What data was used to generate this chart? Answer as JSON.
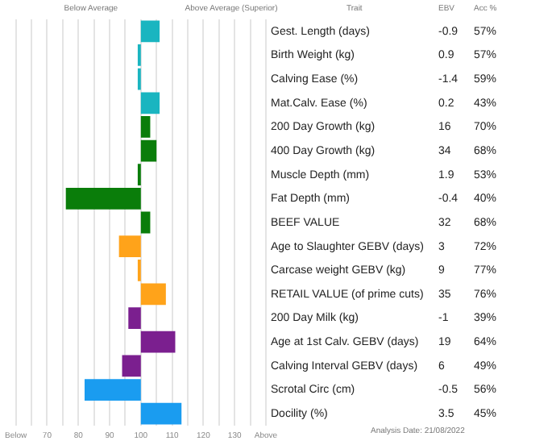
{
  "chart_data": {
    "type": "bar",
    "orientation": "horizontal",
    "categories": [
      "Gest. Length (days)",
      "Birth Weight (kg)",
      "Calving Ease (%)",
      "Mat.Calv. Ease (%)",
      "200 Day Growth (kg)",
      "400 Day Growth (kg)",
      "Muscle Depth (mm)",
      "Fat Depth (mm)",
      "BEEF VALUE",
      "Age to Slaughter GEBV (days)",
      "Carcase weight GEBV (kg)",
      "RETAIL VALUE (of prime cuts)",
      "200 Day Milk (kg)",
      "Age at 1st Calv. GEBV (days)",
      "Calving Interval GEBV (days)",
      "Scrotal Circ (cm)",
      "Docility (%)"
    ],
    "base": [
      100,
      100,
      100,
      100,
      100,
      100,
      100,
      100,
      100,
      100,
      100,
      100,
      100,
      100,
      100,
      100,
      100
    ],
    "values": [
      6,
      -1,
      -1,
      6,
      3,
      5,
      -1,
      -24,
      3,
      -7,
      -1,
      8,
      -4,
      11,
      -6,
      -18,
      13
    ],
    "colors": [
      "#1ab5c0",
      "#1ab5c0",
      "#1ab5c0",
      "#1ab5c0",
      "#0a7d0a",
      "#0a7d0a",
      "#0a7d0a",
      "#0a7d0a",
      "#0a7d0a",
      "#ffa31a",
      "#ffa31a",
      "#ffa31a",
      "#7b1f8f",
      "#7b1f8f",
      "#7b1f8f",
      "#1a9cf0",
      "#1a9cf0"
    ],
    "xlim": [
      60,
      140
    ],
    "xticks": [
      {
        "value": 60,
        "label": "Below"
      },
      {
        "value": 65,
        "label": null
      },
      70,
      {
        "value": 75,
        "label": null
      },
      80,
      {
        "value": 85,
        "label": null
      },
      90,
      {
        "value": 95,
        "label": null
      },
      100,
      {
        "value": 105,
        "label": null
      },
      110,
      {
        "value": 115,
        "label": null
      },
      120,
      {
        "value": 125,
        "label": null
      },
      130,
      {
        "value": 135,
        "label": null
      },
      {
        "value": 140,
        "label": "Above"
      }
    ],
    "grid": "x",
    "legend": false,
    "annotations": [
      "Below Average",
      "Above Average (Superior)",
      "Trait",
      "EBV",
      "Acc %",
      "Analysis Date: 21/08/2022",
      "-0.9",
      "57%",
      "0.9",
      "57%",
      "-1.4",
      "59%",
      "0.2",
      "43%",
      "16",
      "70%",
      "34",
      "68%",
      "1.9",
      "53%",
      "-0.4",
      "40%",
      "32",
      "68%",
      "3",
      "72%",
      "9",
      "77%",
      "35",
      "76%",
      "-1",
      "39%",
      "19",
      "64%",
      "6",
      "49%",
      "-0.5",
      "56%",
      "3.5",
      "45%"
    ]
  }
}
